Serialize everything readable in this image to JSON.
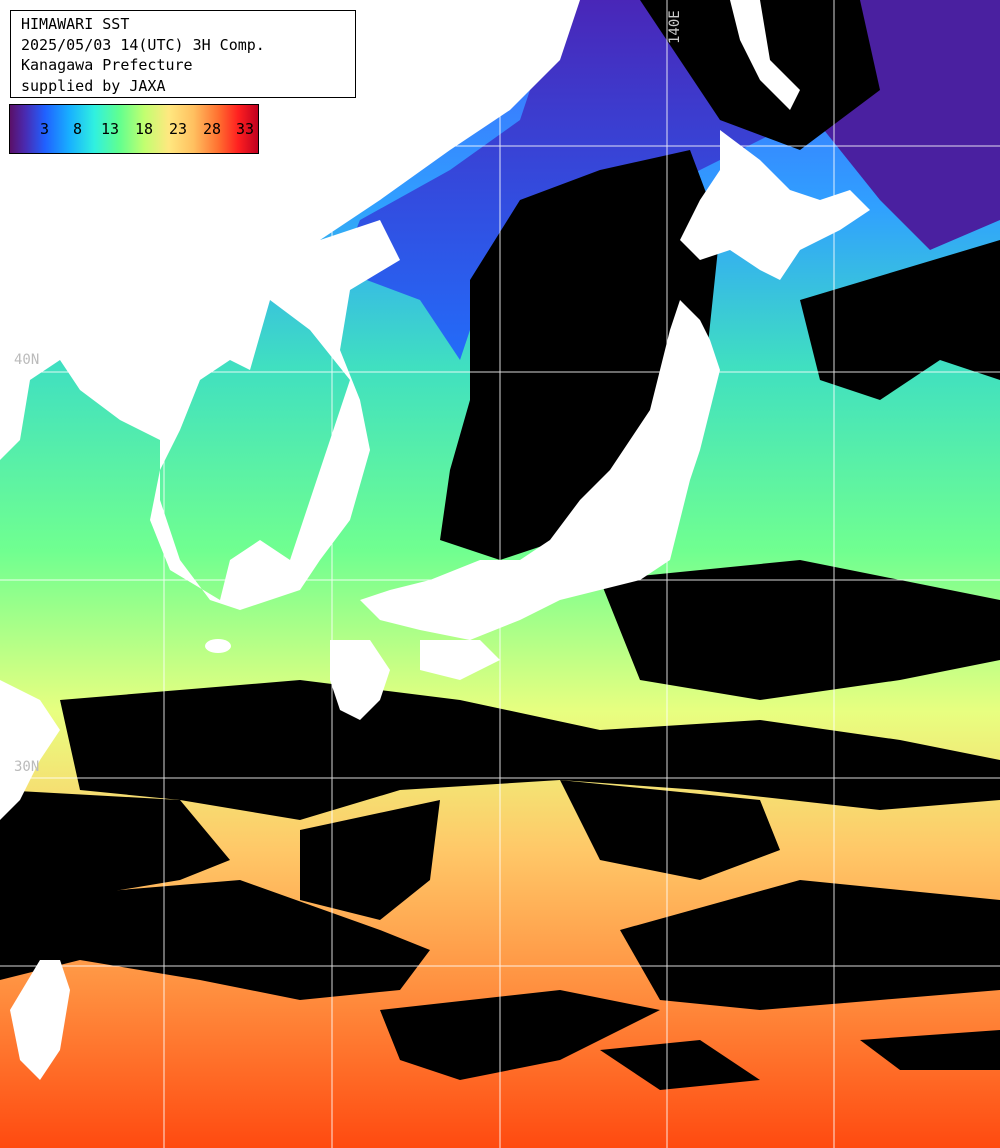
{
  "header": {
    "line1": "HIMAWARI SST",
    "line2": "2025/05/03 14(UTC) 3H Comp.",
    "line3": "Kanagawa Prefecture",
    "line4": "supplied by JAXA"
  },
  "colorbar": {
    "ticks": [
      "3",
      "8",
      "13",
      "18",
      "23",
      "28",
      "33"
    ]
  },
  "grid_labels": {
    "lon_140": "140E",
    "lat_upper": "40N",
    "lat_lower": "30N"
  },
  "colors": {
    "land": "#ffffff",
    "cloud": "#000000",
    "grid": "#ffffff"
  }
}
